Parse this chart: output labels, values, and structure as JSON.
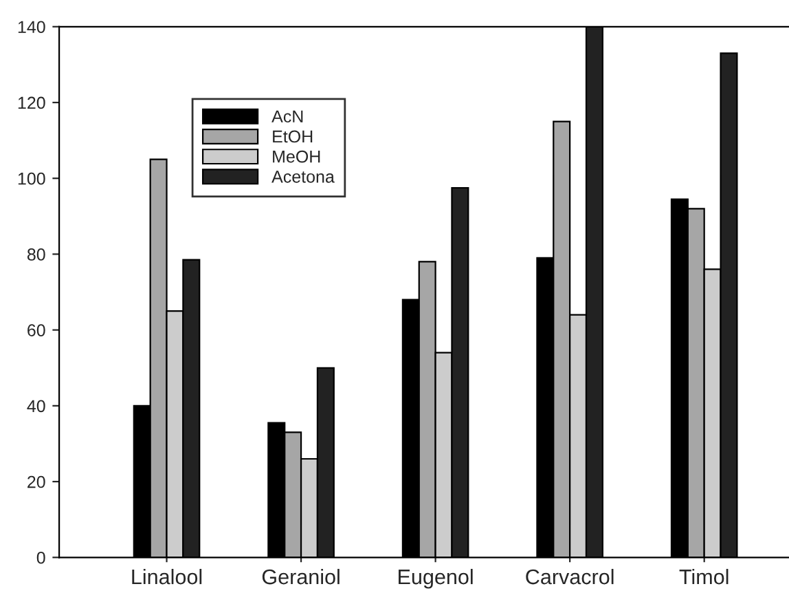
{
  "chart_data": {
    "type": "bar",
    "categories": [
      "Linalool",
      "Geraniol",
      "Eugenol",
      "Carvacrol",
      "Timol"
    ],
    "series": [
      {
        "name": "AcN",
        "color": "#000000",
        "values": [
          40,
          35.5,
          68,
          79,
          94.5
        ]
      },
      {
        "name": "EtOH",
        "color": "#a6a6a6",
        "values": [
          105,
          33,
          78,
          115,
          92
        ]
      },
      {
        "name": "MeOH",
        "color": "#cccccc",
        "values": [
          65,
          26,
          54,
          64,
          76
        ]
      },
      {
        "name": "Acetona",
        "color": "#222222",
        "values": [
          78.5,
          50,
          97.5,
          140,
          133
        ]
      }
    ],
    "ylim": [
      0,
      140
    ],
    "yticks": [
      0,
      20,
      40,
      60,
      80,
      100,
      120,
      140
    ],
    "grid": false,
    "legend": "top left"
  }
}
